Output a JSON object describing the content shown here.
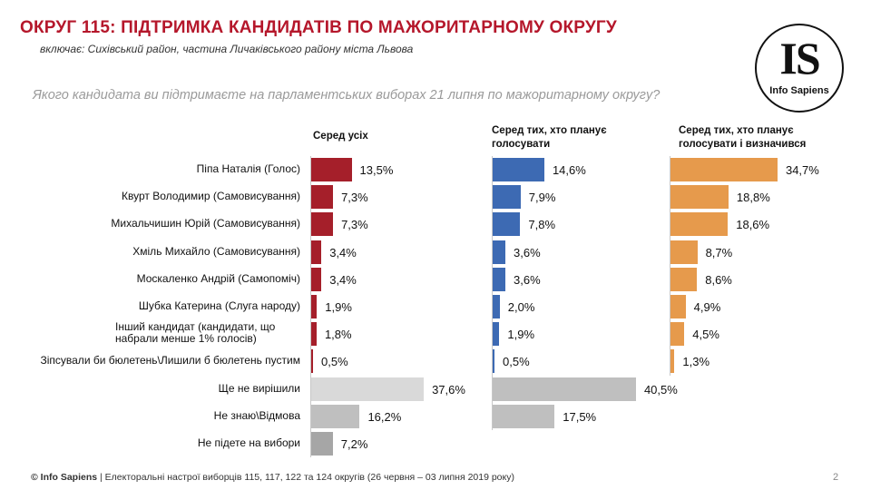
{
  "title": "ОКРУГ 115: ПІДТРИМКА КАНДИДАТІВ ПО МАЖОРИТАРНОМУ ОКРУГУ",
  "subtitle": "включає: Сихівський район, частина Личаківського району міста Львова",
  "question": "Якого кандидата ви підтримаєте на парламентських виборах 21 липня  по мажоритарному округу?",
  "logo": {
    "mark": "IS",
    "text": "Info Sapiens"
  },
  "footer": {
    "brand": "© Info Sapiens",
    "text": " | Електоральні настрої виборців 115, 117, 122 та 124 округів (26 червня – 03 липня 2019 року)",
    "page": "2"
  },
  "colors": {
    "title": "#b5172b",
    "panel1_candidates": "#a51f2a",
    "panel2_candidates": "#3d6ab3",
    "panel3_candidates": "#e69a4c",
    "panel1_other": "#d9d9d9",
    "panel1_dontknow": "#bfbfbf",
    "panel1_notvote": "#a6a6a6",
    "panel2_other": "#bfbfbf"
  },
  "chart_data": {
    "type": "bar",
    "orientation": "horizontal",
    "categories": [
      "Піпа Наталія (Голос)",
      "Квурт  Володимир (Самовисування)",
      "Михальчишин Юрій (Самовисування)",
      "Хміль Михайло (Самовисування)",
      "Москаленко Андрій (Самопоміч)",
      "Шубка Катерина  (Слуга народу)",
      "Інший кандидат (кандидати, що набрали менше 1% голосів)",
      "Зіпсували би бюлетень\\Лишили б бюлетень пустим",
      "Ще не вирішили",
      "Не знаю\\Відмова",
      "Не підете на вибори"
    ],
    "series": [
      {
        "name": "Серед усіх",
        "values": [
          13.5,
          7.3,
          7.3,
          3.4,
          3.4,
          1.9,
          1.8,
          0.5,
          37.6,
          16.2,
          7.2
        ],
        "labels": [
          "13,5%",
          "7,3%",
          "7,3%",
          "3,4%",
          "3,4%",
          "1,9%",
          "1,8%",
          "0,5%",
          "37,6%",
          "16,2%",
          "7,2%"
        ]
      },
      {
        "name": "Серед тих, хто планує голосувати",
        "values": [
          14.6,
          7.9,
          7.8,
          3.6,
          3.6,
          2.0,
          1.9,
          0.5,
          40.5,
          17.5,
          null
        ],
        "labels": [
          "14,6%",
          "7,9%",
          "7,8%",
          "3,6%",
          "3,6%",
          "2,0%",
          "1,9%",
          "0,5%",
          "40,5%",
          "17,5%",
          ""
        ]
      },
      {
        "name": "Серед тих, хто планує голосувати  і визначився",
        "values": [
          34.7,
          18.8,
          18.6,
          8.7,
          8.6,
          4.9,
          4.5,
          1.3,
          null,
          null,
          null
        ],
        "labels": [
          "34,7%",
          "18,8%",
          "18,6%",
          "8,7%",
          "8,6%",
          "4,9%",
          "4,5%",
          "1,3%",
          "",
          "",
          ""
        ]
      }
    ],
    "unit": "%",
    "grid": false,
    "legend": "none"
  }
}
